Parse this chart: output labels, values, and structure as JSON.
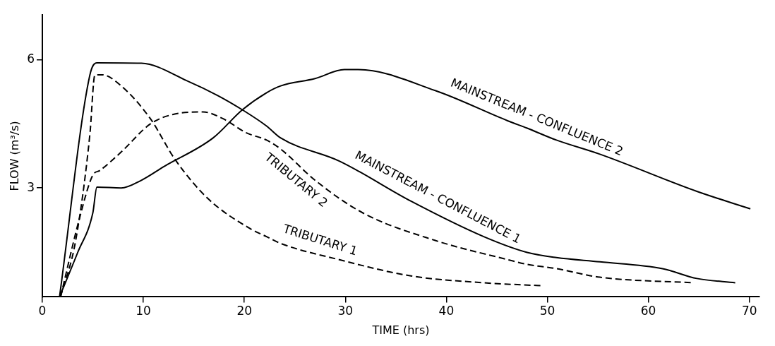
{
  "chart_data": {
    "type": "line",
    "xlabel": "TIME (hrs)",
    "ylabel": "FLOW (m³/s)",
    "xlim": [
      0,
      71
    ],
    "ylim": [
      0.45,
      7.05
    ],
    "xticks": [
      0,
      10,
      20,
      30,
      40,
      50,
      60,
      70
    ],
    "yticks": [
      3,
      6
    ],
    "grid": false,
    "legend": false,
    "marker": "none",
    "series": [
      {
        "name": "MAINSTREAM - CONFLUENCE 2",
        "color": "#000000",
        "line_style": "solid",
        "x": [
          1.7,
          3.5,
          5,
          5.4,
          7.8,
          9.8,
          12.1,
          16.9,
          19.8,
          22.2,
          23.6,
          27,
          29.9,
          31.3,
          38.9,
          46.1,
          48,
          50.9,
          55.2,
          64.8,
          70.1
        ],
        "values": [
          0.45,
          1.49,
          2.42,
          3.02,
          3.0,
          3.18,
          3.51,
          4.17,
          4.83,
          5.23,
          5.39,
          5.56,
          5.77,
          5.77,
          5.28,
          4.57,
          4.4,
          4.12,
          3.79,
          2.92,
          2.51
        ]
      },
      {
        "name": "MAINSTREAM - CONFLUENCE 1",
        "color": "#000000",
        "line_style": "solid",
        "x": [
          1.7,
          4.7,
          5.4,
          9.8,
          14.5,
          17.4,
          19.8,
          22.2,
          23.6,
          29.4,
          36.5,
          43.7,
          48,
          50.9,
          55.2,
          61.4,
          64.8,
          68.6
        ],
        "values": [
          0.45,
          5.64,
          5.93,
          5.92,
          5.49,
          5.16,
          4.83,
          4.45,
          4.17,
          3.63,
          2.69,
          1.86,
          1.49,
          1.37,
          1.27,
          1.11,
          0.88,
          0.78
        ]
      },
      {
        "name": "TRIBUTARY 2",
        "color": "#000000",
        "line_style": "dashed",
        "x": [
          1.8,
          3.7,
          5,
          5.7,
          7.8,
          10.7,
          13.1,
          15.9,
          17.9,
          20.2,
          22.2,
          23.6,
          27,
          31.7,
          38.9,
          46.1,
          48,
          50.9,
          55.2,
          64.3
        ],
        "values": [
          0.45,
          2.31,
          3.3,
          3.41,
          3.84,
          4.5,
          4.73,
          4.78,
          4.62,
          4.29,
          4.12,
          3.91,
          3.18,
          2.42,
          1.77,
          1.32,
          1.21,
          1.11,
          0.91,
          0.78
        ]
      },
      {
        "name": "TRIBUTARY 1",
        "color": "#000000",
        "line_style": "dashed",
        "x": [
          1.8,
          3.3,
          4.7,
          5.2,
          5.9,
          7.8,
          10.7,
          13.1,
          16.4,
          20.7,
          22.2,
          23.6,
          29.4,
          36.5,
          43.7,
          49.5
        ],
        "values": [
          0.45,
          1.77,
          4.24,
          5.64,
          5.65,
          5.39,
          4.62,
          3.68,
          2.75,
          2.03,
          1.86,
          1.7,
          1.32,
          0.94,
          0.78,
          0.71
        ]
      }
    ]
  }
}
